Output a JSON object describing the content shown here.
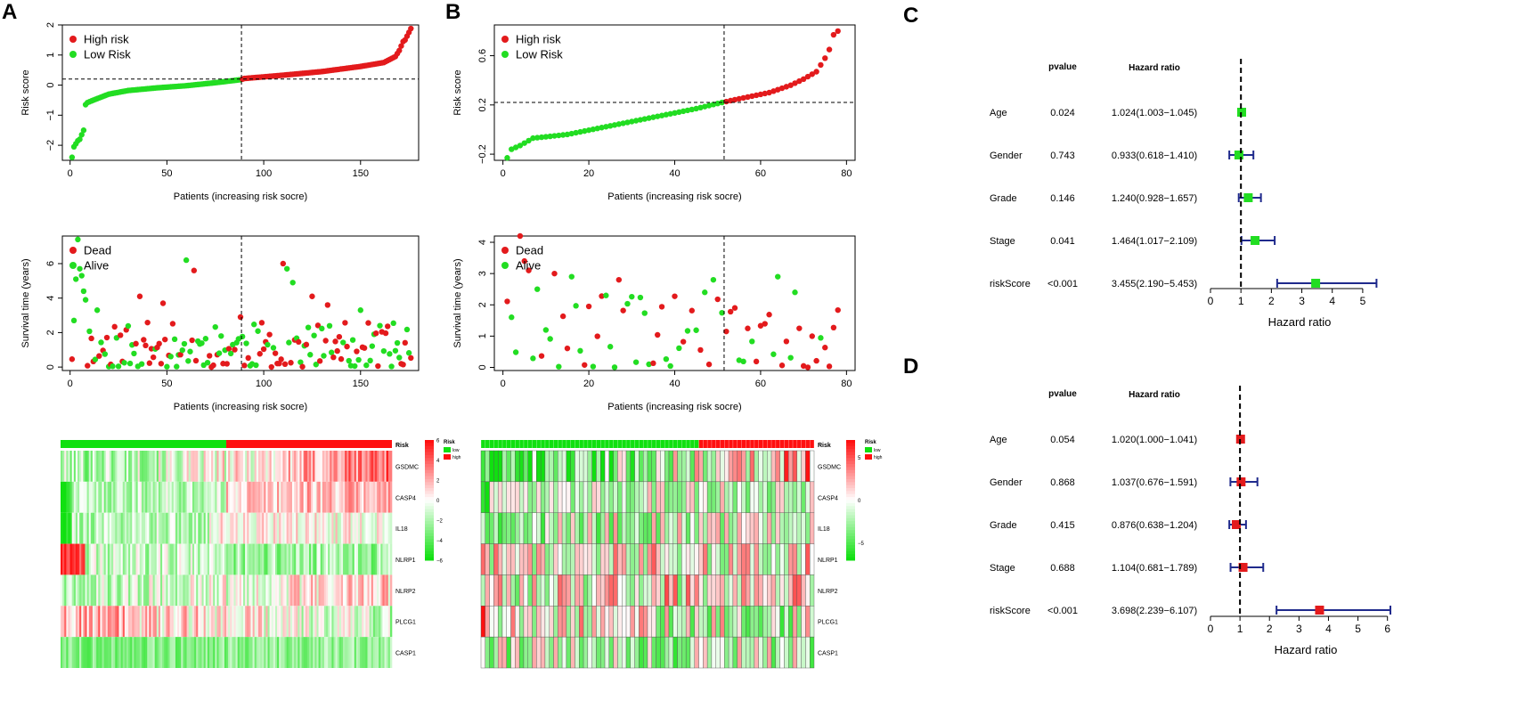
{
  "panels": {
    "A": "A",
    "B": "B",
    "C": "C",
    "D": "D"
  },
  "colors": {
    "high": "#e31a1c",
    "low": "#22dd22",
    "forest_line": "#1f2a8c",
    "heat_low": "#10e010",
    "heat_mid": "#ffffff",
    "heat_high": "#ff1010"
  },
  "chart_data": [
    {
      "id": "A_risk",
      "type": "scatter",
      "ylabel": "Risk score",
      "xlabel": "Patients (increasing risk socre)",
      "legend": [
        "High risk",
        "Low Risk"
      ],
      "legend_position": "top-left",
      "n_patients": 176,
      "cutoff_index": 88,
      "cutoff_score": 0.2,
      "xlim": [
        -4,
        180
      ],
      "ylim": [
        -2.5,
        2.0
      ],
      "xticks": [
        0,
        50,
        100,
        150
      ],
      "yticks": [
        -2,
        -1,
        0,
        1,
        2
      ],
      "curve_knots": [
        [
          1,
          -2.4
        ],
        [
          2,
          -2.05
        ],
        [
          3,
          -1.95
        ],
        [
          4,
          -1.85
        ],
        [
          5,
          -1.8
        ],
        [
          6,
          -1.65
        ],
        [
          7,
          -1.5
        ],
        [
          8,
          -0.65
        ],
        [
          9,
          -0.58
        ],
        [
          12,
          -0.5
        ],
        [
          20,
          -0.3
        ],
        [
          30,
          -0.18
        ],
        [
          45,
          -0.09
        ],
        [
          60,
          -0.02
        ],
        [
          75,
          0.08
        ],
        [
          88,
          0.18
        ],
        [
          90,
          0.22
        ],
        [
          110,
          0.33
        ],
        [
          130,
          0.45
        ],
        [
          150,
          0.62
        ],
        [
          162,
          0.75
        ],
        [
          168,
          0.95
        ],
        [
          170,
          1.15
        ],
        [
          172,
          1.45
        ],
        [
          173,
          1.5
        ],
        [
          176,
          1.88
        ]
      ]
    },
    {
      "id": "A_surv",
      "type": "scatter",
      "ylabel": "Survival time (years)",
      "xlabel": "Patients (increasing risk socre)",
      "legend": [
        "Dead",
        "Alive"
      ],
      "legend_position": "top-left",
      "n_patients": 176,
      "cutoff_index": 88,
      "xlim": [
        -4,
        180
      ],
      "ylim": [
        -0.2,
        7.6
      ],
      "xticks": [
        0,
        50,
        100,
        150
      ],
      "yticks": [
        0,
        2,
        4,
        6
      ],
      "highlights": [
        [
          2,
          2.7,
          "alive"
        ],
        [
          3,
          5.1,
          "alive"
        ],
        [
          4,
          7.4,
          "alive"
        ],
        [
          5,
          5.7,
          "alive"
        ],
        [
          6,
          5.3,
          "alive"
        ],
        [
          7,
          4.4,
          "alive"
        ],
        [
          8,
          3.9,
          "alive"
        ],
        [
          14,
          3.3,
          "alive"
        ],
        [
          36,
          4.1,
          "dead"
        ],
        [
          48,
          3.7,
          "dead"
        ],
        [
          60,
          6.2,
          "alive"
        ],
        [
          64,
          5.6,
          "dead"
        ],
        [
          88,
          2.9,
          "dead"
        ],
        [
          110,
          6.0,
          "dead"
        ],
        [
          112,
          5.7,
          "alive"
        ],
        [
          115,
          4.9,
          "alive"
        ],
        [
          125,
          4.1,
          "dead"
        ],
        [
          133,
          3.6,
          "dead"
        ],
        [
          150,
          3.3,
          "alive"
        ],
        [
          160,
          2.4,
          "alive"
        ]
      ]
    },
    {
      "id": "B_risk",
      "type": "scatter",
      "ylabel": "Risk score",
      "xlabel": "Patients (increasing risk socre)",
      "legend": [
        "High risk",
        "Low Risk"
      ],
      "legend_position": "top-left",
      "n_patients": 78,
      "cutoff_index": 51,
      "cutoff_score": 0.22,
      "xlim": [
        -2,
        82
      ],
      "ylim": [
        -0.25,
        0.85
      ],
      "xticks": [
        0,
        20,
        40,
        60,
        80
      ],
      "yticks": [
        -0.2,
        0.2,
        0.6
      ],
      "curve_knots": [
        [
          1,
          -0.23
        ],
        [
          2,
          -0.16
        ],
        [
          4,
          -0.13
        ],
        [
          6,
          -0.09
        ],
        [
          7,
          -0.07
        ],
        [
          15,
          -0.04
        ],
        [
          25,
          0.03
        ],
        [
          35,
          0.1
        ],
        [
          45,
          0.17
        ],
        [
          51,
          0.22
        ],
        [
          55,
          0.25
        ],
        [
          62,
          0.3
        ],
        [
          67,
          0.36
        ],
        [
          70,
          0.41
        ],
        [
          73,
          0.47
        ],
        [
          75,
          0.58
        ],
        [
          76,
          0.65
        ],
        [
          77,
          0.77
        ],
        [
          78,
          0.8
        ]
      ]
    },
    {
      "id": "B_surv",
      "type": "scatter",
      "ylabel": "Survival time (years)",
      "xlabel": "Patients (increasing risk socre)",
      "legend": [
        "Dead",
        "Alive"
      ],
      "legend_position": "top-left",
      "n_patients": 78,
      "cutoff_index": 51,
      "xlim": [
        -2,
        82
      ],
      "ylim": [
        -0.1,
        4.2
      ],
      "xticks": [
        0,
        20,
        40,
        60,
        80
      ],
      "yticks": [
        0,
        1,
        2,
        3,
        4
      ],
      "highlights": [
        [
          4,
          4.2,
          "dead"
        ],
        [
          5,
          3.4,
          "dead"
        ],
        [
          6,
          3.1,
          "dead"
        ],
        [
          8,
          2.5,
          "alive"
        ],
        [
          12,
          3.0,
          "dead"
        ],
        [
          16,
          2.9,
          "alive"
        ],
        [
          24,
          2.3,
          "alive"
        ],
        [
          27,
          2.8,
          "dead"
        ],
        [
          47,
          2.4,
          "alive"
        ],
        [
          49,
          2.8,
          "alive"
        ],
        [
          64,
          2.9,
          "alive"
        ],
        [
          68,
          2.4,
          "alive"
        ]
      ]
    },
    {
      "id": "A_heat",
      "type": "heatmap",
      "rows": [
        "GSDMC",
        "CASP4",
        "IL18",
        "NLRP1",
        "NLRP2",
        "PLCG1",
        "CASP1"
      ],
      "n_cols": 176,
      "low_cols": 88,
      "annotation_label": "Risk",
      "legend_title": "Risk",
      "legend_entries": [
        "low",
        "high"
      ],
      "scale_ticks": [
        "6",
        "4",
        "2",
        "0",
        "−2",
        "−4",
        "−6"
      ],
      "scale_range": [
        -6,
        6
      ]
    },
    {
      "id": "B_heat",
      "type": "heatmap",
      "rows": [
        "GSDMC",
        "CASP4",
        "IL18",
        "NLRP1",
        "NLRP2",
        "PLCG1",
        "CASP1"
      ],
      "n_cols": 78,
      "low_cols": 51,
      "annotation_label": "Risk",
      "legend_title": "Risk",
      "legend_entries": [
        "low",
        "high"
      ],
      "scale_ticks": [
        "5",
        "0",
        "−5"
      ],
      "scale_range": [
        -7,
        7
      ]
    },
    {
      "id": "C_forest",
      "type": "forest",
      "col_headers": [
        "pvalue",
        "Hazard ratio"
      ],
      "marker_color": "#22dd22",
      "rows": [
        {
          "label": "Age",
          "pvalue": "0.024",
          "hr_text": "1.024(1.003−1.045)",
          "hr": 1.024,
          "lo": 1.003,
          "hi": 1.045
        },
        {
          "label": "Gender",
          "pvalue": "0.743",
          "hr_text": "0.933(0.618−1.410)",
          "hr": 0.933,
          "lo": 0.618,
          "hi": 1.41
        },
        {
          "label": "Grade",
          "pvalue": "0.146",
          "hr_text": "1.240(0.928−1.657)",
          "hr": 1.24,
          "lo": 0.928,
          "hi": 1.657
        },
        {
          "label": "Stage",
          "pvalue": "0.041",
          "hr_text": "1.464(1.017−2.109)",
          "hr": 1.464,
          "lo": 1.017,
          "hi": 2.109
        },
        {
          "label": "riskScore",
          "pvalue": "<0.001",
          "hr_text": "3.455(2.190−5.453)",
          "hr": 3.455,
          "lo": 2.19,
          "hi": 5.453
        }
      ],
      "xlim": [
        0,
        5.5
      ],
      "xticks": [
        0,
        1,
        2,
        3,
        4,
        5
      ],
      "xlabel": "Hazard ratio",
      "ref_line": 1
    },
    {
      "id": "D_forest",
      "type": "forest",
      "col_headers": [
        "pvalue",
        "Hazard ratio"
      ],
      "marker_color": "#e31a1c",
      "rows": [
        {
          "label": "Age",
          "pvalue": "0.054",
          "hr_text": "1.020(1.000−1.041)",
          "hr": 1.02,
          "lo": 1.0,
          "hi": 1.041
        },
        {
          "label": "Gender",
          "pvalue": "0.868",
          "hr_text": "1.037(0.676−1.591)",
          "hr": 1.037,
          "lo": 0.676,
          "hi": 1.591
        },
        {
          "label": "Grade",
          "pvalue": "0.415",
          "hr_text": "0.876(0.638−1.204)",
          "hr": 0.876,
          "lo": 0.638,
          "hi": 1.204
        },
        {
          "label": "Stage",
          "pvalue": "0.688",
          "hr_text": "1.104(0.681−1.789)",
          "hr": 1.104,
          "lo": 0.681,
          "hi": 1.789
        },
        {
          "label": "riskScore",
          "pvalue": "<0.001",
          "hr_text": "3.698(2.239−6.107)",
          "hr": 3.698,
          "lo": 2.239,
          "hi": 6.107
        }
      ],
      "xlim": [
        0,
        6.1
      ],
      "xticks": [
        0,
        1,
        2,
        3,
        4,
        5,
        6
      ],
      "xlabel": "Hazard ratio",
      "ref_line": 1
    }
  ]
}
